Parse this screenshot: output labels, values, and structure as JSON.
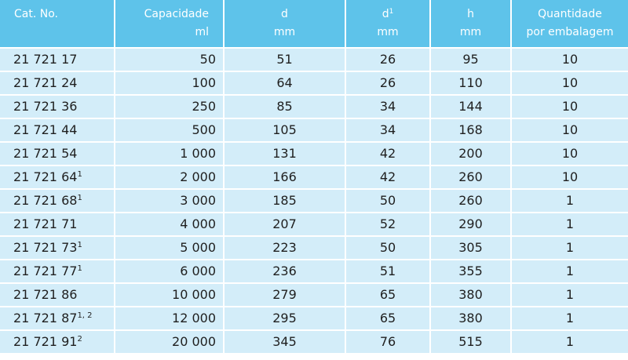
{
  "headers": {
    "cat": {
      "line1": "Cat. No.",
      "line2": ""
    },
    "capacity": {
      "line1": "Capacidade",
      "line2": "ml"
    },
    "d": {
      "line1": "d",
      "line2": "mm"
    },
    "d1": {
      "line1": "d",
      "sup": "1",
      "line2": "mm"
    },
    "h": {
      "line1": "h",
      "line2": "mm"
    },
    "qty": {
      "line1": "Quantidade",
      "line2": "por embalagem"
    }
  },
  "rows": [
    {
      "cat": "21 721 17",
      "note": "",
      "capacity": "50",
      "d": "51",
      "d1": "26",
      "h": "95",
      "qty": "10"
    },
    {
      "cat": "21 721 24",
      "note": "",
      "capacity": "100",
      "d": "64",
      "d1": "26",
      "h": "110",
      "qty": "10"
    },
    {
      "cat": "21 721 36",
      "note": "",
      "capacity": "250",
      "d": "85",
      "d1": "34",
      "h": "144",
      "qty": "10"
    },
    {
      "cat": "21 721 44",
      "note": "",
      "capacity": "500",
      "d": "105",
      "d1": "34",
      "h": "168",
      "qty": "10"
    },
    {
      "cat": "21 721 54",
      "note": "",
      "capacity": "1 000",
      "d": "131",
      "d1": "42",
      "h": "200",
      "qty": "10"
    },
    {
      "cat": "21 721 64",
      "note": "1",
      "capacity": "2 000",
      "d": "166",
      "d1": "42",
      "h": "260",
      "qty": "10"
    },
    {
      "cat": "21 721 68",
      "note": "1",
      "capacity": "3 000",
      "d": "185",
      "d1": "50",
      "h": "260",
      "qty": "1"
    },
    {
      "cat": "21 721 71",
      "note": "",
      "capacity": "4 000",
      "d": "207",
      "d1": "52",
      "h": "290",
      "qty": "1"
    },
    {
      "cat": "21 721 73",
      "note": "1",
      "capacity": "5 000",
      "d": "223",
      "d1": "50",
      "h": "305",
      "qty": "1"
    },
    {
      "cat": "21 721 77",
      "note": "1",
      "capacity": "6 000",
      "d": "236",
      "d1": "51",
      "h": "355",
      "qty": "1"
    },
    {
      "cat": "21 721 86",
      "note": "",
      "capacity": "10 000",
      "d": "279",
      "d1": "65",
      "h": "380",
      "qty": "1"
    },
    {
      "cat": "21 721 87",
      "note": "1, 2",
      "capacity": "12 000",
      "d": "295",
      "d1": "65",
      "h": "380",
      "qty": "1"
    },
    {
      "cat": "21 721 91",
      "note": "2",
      "capacity": "20 000",
      "d": "345",
      "d1": "76",
      "h": "515",
      "qty": "1"
    }
  ],
  "colors": {
    "header_bg": "#5ec3ea",
    "header_text": "#ffffff",
    "row_bg": "#d3edf9",
    "row_text": "#1f1f1f",
    "grid_line": "#ffffff"
  }
}
